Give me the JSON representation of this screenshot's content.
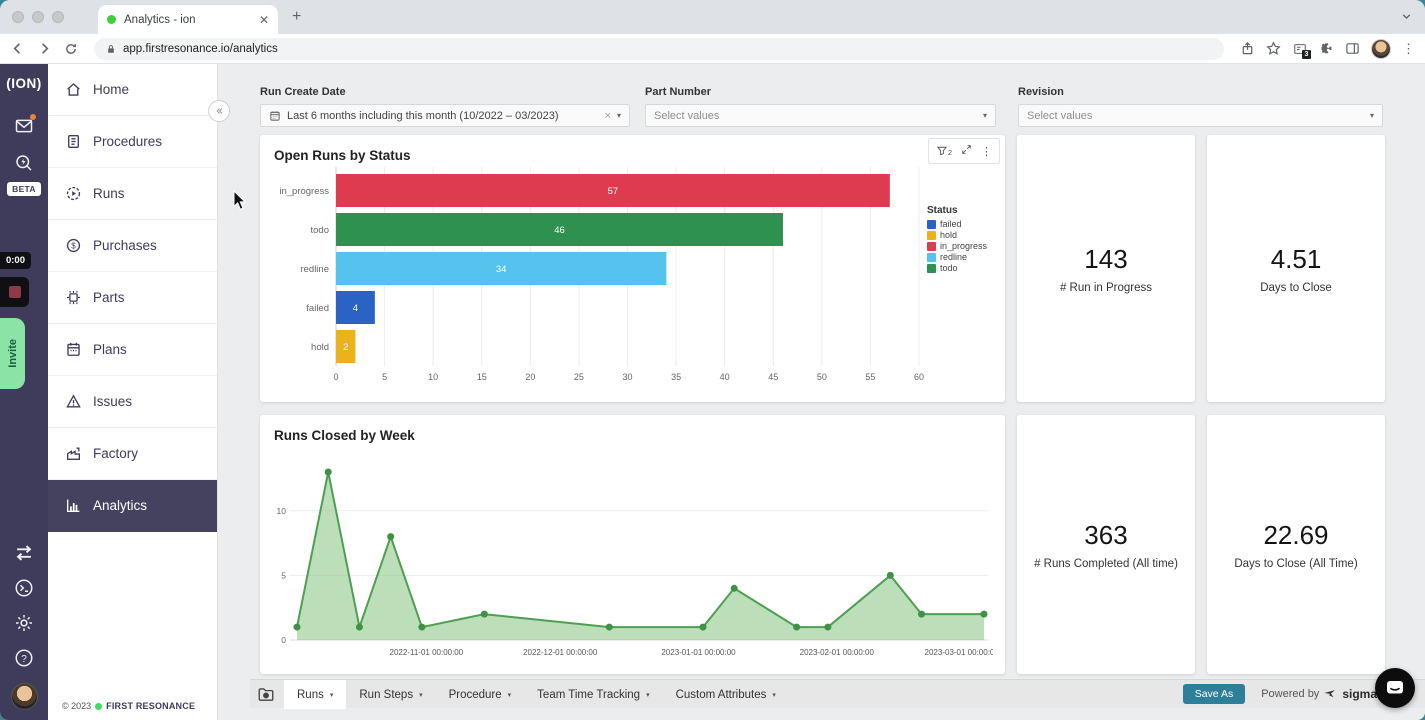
{
  "browser": {
    "tab_title": "Analytics - ion",
    "url": "app.firstresonance.io/analytics",
    "extension_badge": "3"
  },
  "rail": {
    "logo_text": "(ION)",
    "beta_label": "BETA",
    "recorder_timer": "0:00",
    "invite_label": "Invite"
  },
  "sidebar": {
    "active": "Analytics",
    "items": [
      {
        "label": "Home",
        "icon": "home"
      },
      {
        "label": "Procedures",
        "icon": "procedures"
      },
      {
        "label": "Runs",
        "icon": "runs"
      },
      {
        "label": "Purchases",
        "icon": "purchases"
      },
      {
        "label": "Parts",
        "icon": "parts"
      },
      {
        "label": "Plans",
        "icon": "plans"
      },
      {
        "label": "Issues",
        "icon": "issues"
      },
      {
        "label": "Factory",
        "icon": "factory"
      },
      {
        "label": "Analytics",
        "icon": "analytics"
      }
    ],
    "footer_copyright": "© 2023",
    "footer_brand": "FIRST RESONANCE"
  },
  "filters": [
    {
      "label": "Run Create Date",
      "value": "Last 6 months including this month (10/2022 – 03/2023)"
    },
    {
      "label": "Part Number",
      "placeholder": "Select values"
    },
    {
      "label": "Revision",
      "placeholder": "Select values"
    }
  ],
  "chart_toolbar": {
    "filter_count": "2"
  },
  "kpis": [
    {
      "value": "143",
      "label": "# Run in Progress"
    },
    {
      "value": "4.51",
      "label": "Days to Close"
    },
    {
      "value": "363",
      "label": "# Runs Completed (All time)"
    },
    {
      "value": "22.69",
      "label": "Days to Close (All Time)"
    }
  ],
  "chart_data": [
    {
      "type": "bar",
      "orientation": "horizontal",
      "title": "Open Runs by Status",
      "categories": [
        "in_progress",
        "todo",
        "redline",
        "failed",
        "hold"
      ],
      "values": [
        57,
        46,
        34,
        4,
        2
      ],
      "bar_colors": [
        "#df3b50",
        "#2e9150",
        "#55c3ee",
        "#2a63c4",
        "#ecb21c"
      ],
      "xlim": [
        0,
        60
      ],
      "xtick_step": 5,
      "grid": true,
      "legend_position": "right",
      "legend_title": "Status",
      "legend": [
        {
          "label": "failed",
          "color": "#2a63c4"
        },
        {
          "label": "hold",
          "color": "#ecb21c"
        },
        {
          "label": "in_progress",
          "color": "#df3b50"
        },
        {
          "label": "redline",
          "color": "#55c3ee"
        },
        {
          "label": "todo",
          "color": "#2e9150"
        }
      ]
    },
    {
      "type": "area",
      "title": "Runs Closed by Week",
      "points": [
        {
          "x": "2022-10-03",
          "y": 1
        },
        {
          "x": "2022-10-10",
          "y": 13
        },
        {
          "x": "2022-10-17",
          "y": 1
        },
        {
          "x": "2022-10-24",
          "y": 8
        },
        {
          "x": "2022-10-31",
          "y": 1
        },
        {
          "x": "2022-11-14",
          "y": 2
        },
        {
          "x": "2022-12-12",
          "y": 1
        },
        {
          "x": "2023-01-02",
          "y": 1
        },
        {
          "x": "2023-01-09",
          "y": 4
        },
        {
          "x": "2023-01-23",
          "y": 1
        },
        {
          "x": "2023-01-30",
          "y": 1
        },
        {
          "x": "2023-02-13",
          "y": 5
        },
        {
          "x": "2023-02-20",
          "y": 2
        },
        {
          "x": "2023-03-06",
          "y": 2
        }
      ],
      "ylim": [
        0,
        13
      ],
      "yticks": [
        0,
        5,
        10
      ],
      "xticks": [
        {
          "label": "2022-11-01 00:00:00",
          "x": "2022-11-01"
        },
        {
          "label": "2022-12-01 00:00:00",
          "x": "2022-12-01"
        },
        {
          "label": "2023-01-01 00:00:00",
          "x": "2023-01-01"
        },
        {
          "label": "2023-02-01 00:00:00",
          "x": "2023-02-01"
        },
        {
          "label": "2023-03-01 00:00:00",
          "x": "2023-03-01"
        }
      ],
      "line_color": "#4f9e53",
      "marker_color": "#3f9245",
      "fill_color": "#8fc98b",
      "grid": true
    }
  ],
  "bottom_bar": {
    "active_tab": "Runs",
    "tabs": [
      "Runs",
      "Run Steps",
      "Procedure",
      "Team Time Tracking",
      "Custom Attributes"
    ],
    "save_as_label": "Save As",
    "powered_by_label": "Powered by",
    "powered_by_brand": "sigma"
  }
}
